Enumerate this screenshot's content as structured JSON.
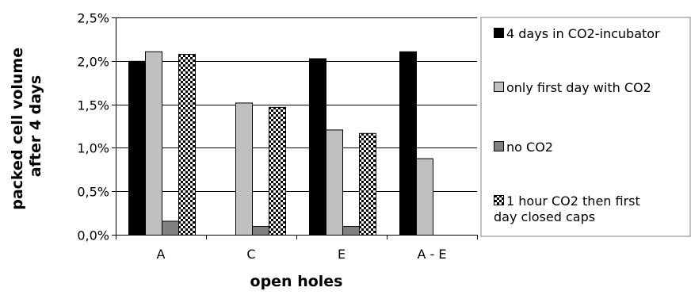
{
  "chart_data": {
    "type": "bar",
    "title": "",
    "xlabel": "open holes",
    "ylabel_lines": [
      "packed cell volume",
      "after 4 days"
    ],
    "categories": [
      "A",
      "C",
      "E",
      "A - E"
    ],
    "ylim": [
      0,
      0.025
    ],
    "y_ticks": [
      0.0,
      0.005,
      0.01,
      0.015,
      0.02,
      0.025
    ],
    "y_tick_labels": [
      "0,0%",
      "0,5%",
      "1,0%",
      "1,5%",
      "2,0%",
      "2,5%"
    ],
    "grid": "horizontal",
    "legend_position": "right",
    "series": [
      {
        "name": "4 days in CO2-incubator",
        "name_lines": [
          "4 days in CO2-incubator"
        ],
        "fill": "#000000",
        "pattern": "solid",
        "values": [
          0.02,
          null,
          0.0203,
          0.0211
        ]
      },
      {
        "name": "only first day with CO2",
        "name_lines": [
          "only first day with CO2"
        ],
        "fill": "#c0c0c0",
        "pattern": "solid",
        "values": [
          0.0211,
          0.0152,
          0.0121,
          0.0088
        ]
      },
      {
        "name": "no CO2",
        "name_lines": [
          "no CO2"
        ],
        "fill": "#808080",
        "pattern": "solid",
        "values": [
          0.0016,
          0.001,
          0.001,
          null
        ]
      },
      {
        "name": "1 hour CO2 then first day closed caps",
        "name_lines": [
          "1 hour CO2 then first",
          "day closed caps"
        ],
        "fill": "#ffffff",
        "pattern": "checker",
        "values": [
          0.0208,
          0.0147,
          0.0117,
          null
        ]
      }
    ]
  }
}
